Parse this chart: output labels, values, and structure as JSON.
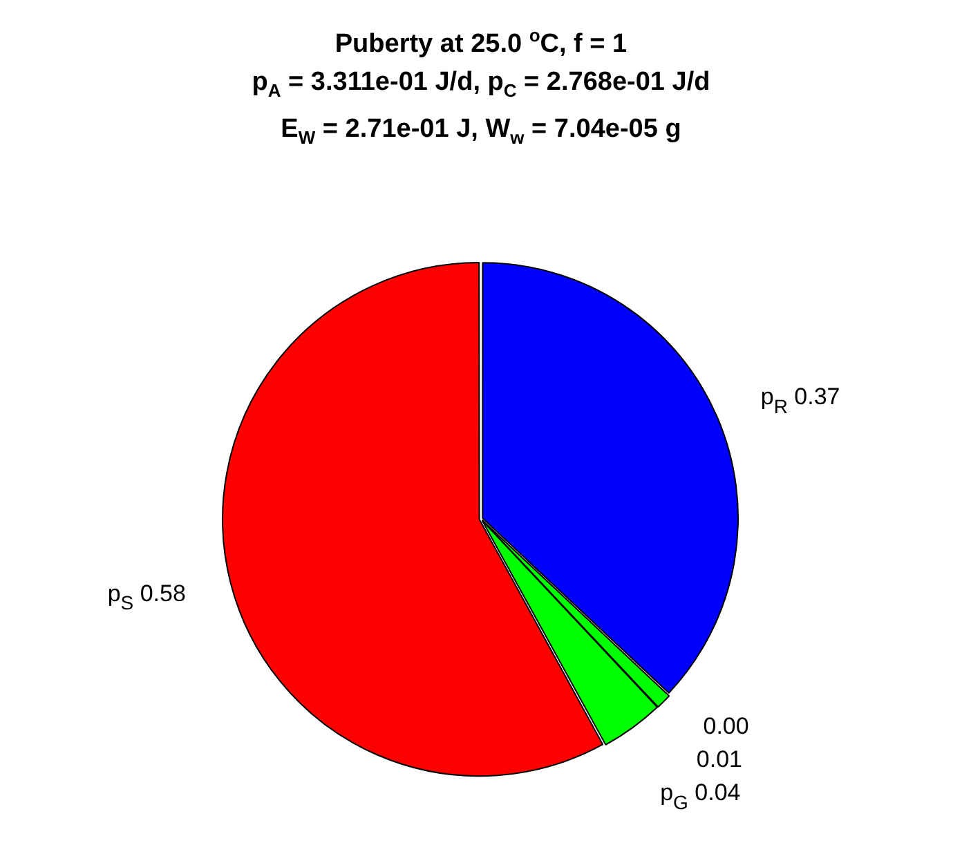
{
  "chart_data": {
    "type": "pie",
    "title": "Puberty at 25.0 $^{o}$C, f = 1",
    "subtitle": "p$_{A}$ = 3.311e-01 J/d,  p$_{C}$ = 2.768e-01 J/d\nE$_{W}$ = 2.71e-01 J, W$_{w}$ = 7.04e-05 g",
    "categories": [
      "p$_{R}$",
      null,
      null,
      "p$_{G}$",
      "p$_{S}$"
    ],
    "values": [
      0.37,
      0.0,
      0.01,
      0.04,
      0.58
    ],
    "colors": [
      "#0000ff",
      "#ff00ff",
      "#00ff00",
      "#00ff00",
      "#ff0000"
    ],
    "value_labels": [
      "0.37",
      "0.00",
      "0.01",
      "0.04",
      "0.58"
    ],
    "legend": false
  }
}
